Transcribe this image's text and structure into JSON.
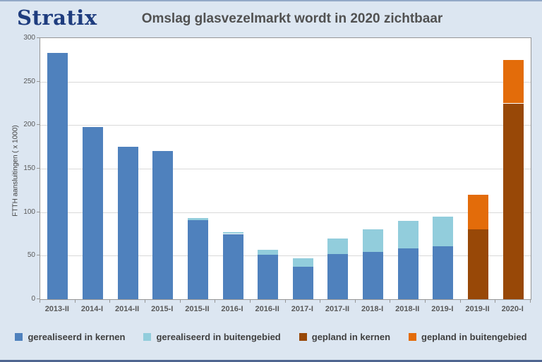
{
  "logo": "Stratix",
  "title": "Omslag glasvezelmarkt wordt in 2020 zichtbaar",
  "colors": {
    "background": "#DCE6F1",
    "plot_background": "#FFFFFF",
    "plot_border": "#969696",
    "gridline": "#D9D9D9",
    "logo_text": "#1E3C7E",
    "title_text": "#515151",
    "axis_text": "#595959",
    "legend_text": "#404040"
  },
  "chart_data": {
    "type": "bar",
    "stacked": true,
    "title": "Omslag glasvezelmarkt wordt in 2020 zichtbaar",
    "xlabel": "",
    "ylabel": "FTTH aansluitingen ( x 1000)",
    "ylim": [
      0,
      300
    ],
    "ytick_step": 50,
    "grid": true,
    "legend_position": "bottom",
    "categories": [
      "2013-II",
      "2014-I",
      "2014-II",
      "2015-I",
      "2015-II",
      "2016-I",
      "2016-II",
      "2017-I",
      "2017-II",
      "2018-I",
      "2018-II",
      "2019-I",
      "2019-II",
      "2020-I"
    ],
    "series": [
      {
        "name": "gerealiseerd in kernen",
        "color": "#4F81BD",
        "values": [
          283,
          198,
          175,
          170,
          91,
          75,
          51,
          37,
          52,
          54,
          58,
          61,
          0,
          0
        ]
      },
      {
        "name": "gerealiseerd in buitengebied",
        "color": "#92CDDC",
        "values": [
          0,
          0,
          0,
          0,
          2,
          2,
          6,
          10,
          18,
          26,
          32,
          34,
          0,
          0
        ]
      },
      {
        "name": "gepland in kernen",
        "color": "#984807",
        "values": [
          0,
          0,
          0,
          0,
          0,
          0,
          0,
          0,
          0,
          0,
          0,
          0,
          80,
          225
        ]
      },
      {
        "name": "gepland in buitengebied",
        "color": "#E36C0A",
        "values": [
          0,
          0,
          0,
          0,
          0,
          0,
          0,
          0,
          0,
          0,
          0,
          0,
          40,
          50
        ]
      }
    ]
  }
}
